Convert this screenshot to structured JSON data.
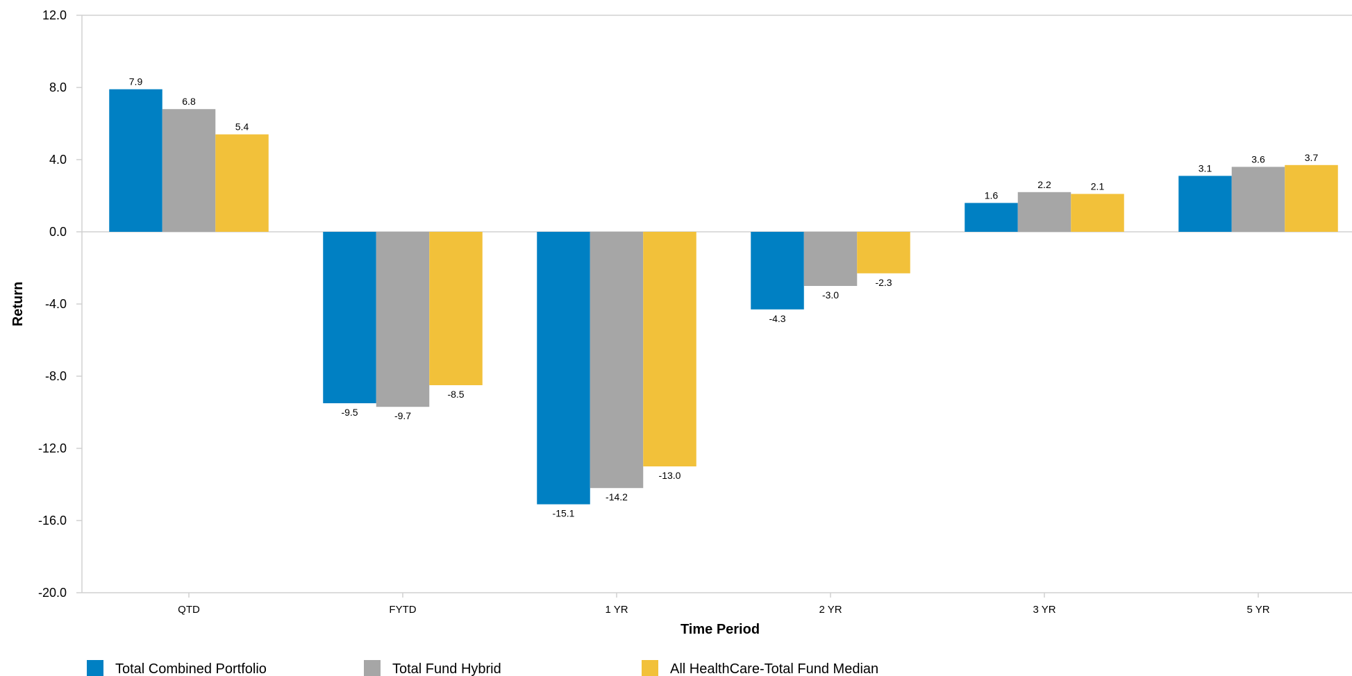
{
  "chart_data": {
    "type": "bar",
    "title": "",
    "xlabel": "Time Period",
    "ylabel": "Return",
    "ylim": [
      -20,
      12
    ],
    "yticks": [
      12,
      8,
      4,
      0,
      -4,
      -8,
      -12,
      -16,
      -20
    ],
    "ytick_labels": [
      "12.0",
      "8.0",
      "4.0",
      "0.0",
      "-4.0",
      "-8.0",
      "-12.0",
      "-16.0",
      "-20.0"
    ],
    "grid": false,
    "legend_position": "bottom",
    "categories": [
      "QTD",
      "FYTD",
      "1 YR",
      "2 YR",
      "3 YR",
      "5 YR"
    ],
    "series": [
      {
        "name": "Total Combined Portfolio",
        "color": "#0080C3",
        "values": [
          7.9,
          -9.5,
          -15.1,
          -4.3,
          1.6,
          3.1
        ],
        "labels": [
          "7.9",
          "-9.5",
          "-15.1",
          "-4.3",
          "1.6",
          "3.1"
        ]
      },
      {
        "name": "Total Fund Hybrid",
        "color": "#A6A6A6",
        "values": [
          6.8,
          -9.7,
          -14.2,
          -3.0,
          2.2,
          3.6
        ],
        "labels": [
          "6.8",
          "-9.7",
          "-14.2",
          "-3.0",
          "2.2",
          "3.6"
        ]
      },
      {
        "name": "All HealthCare-Total Fund Median",
        "color": "#F2C13A",
        "values": [
          5.4,
          -8.5,
          -13.0,
          -2.3,
          2.1,
          3.7
        ],
        "labels": [
          "5.4",
          "-8.5",
          "-13.0",
          "-2.3",
          "2.1",
          "3.7"
        ]
      }
    ]
  }
}
